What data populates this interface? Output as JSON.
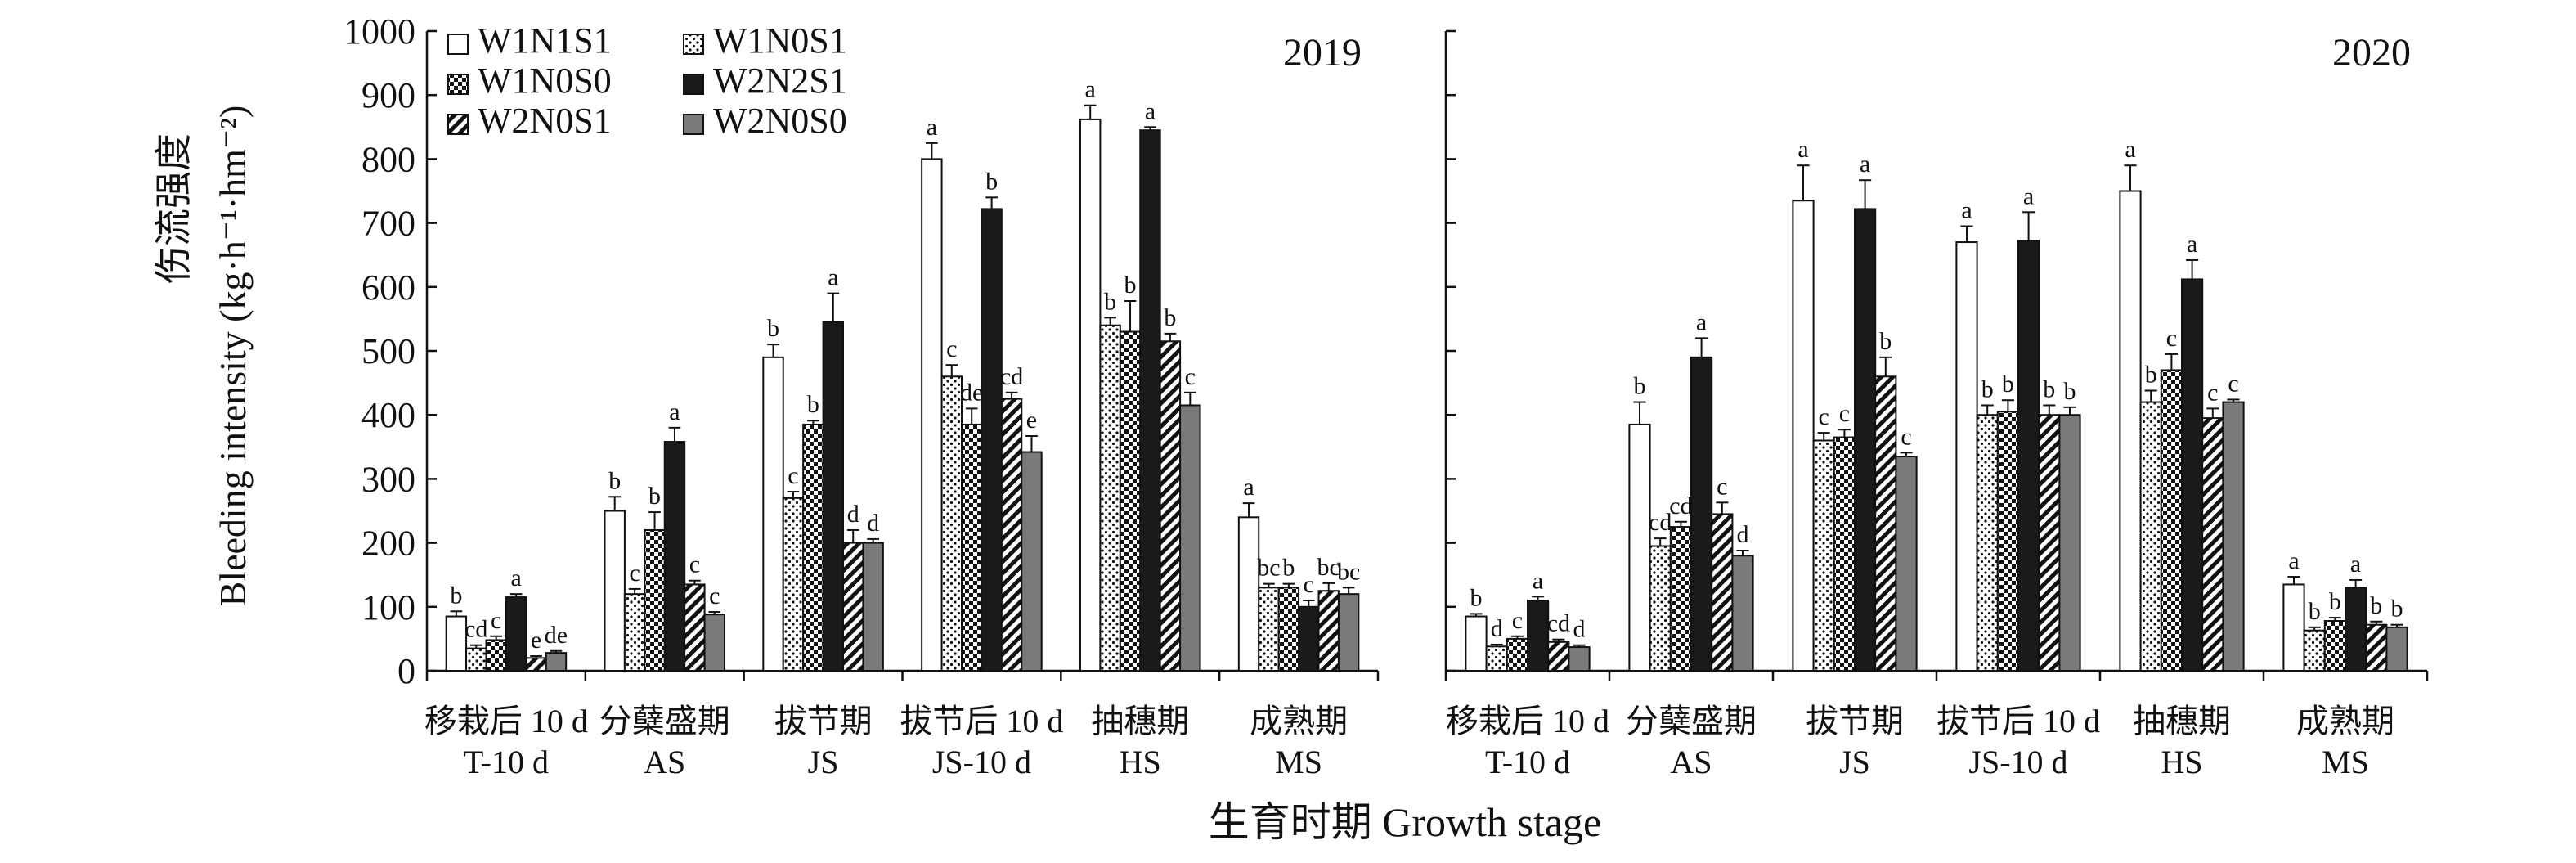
{
  "chart_data": {
    "type": "bar",
    "ylabel_cn": "伤流强度",
    "ylabel_en": "Bleeding intensity (kg·h⁻¹·hm⁻²)",
    "xlabel": "生育时期 Growth stage",
    "ylim": [
      0,
      1000
    ],
    "yticks": [
      "0",
      "100",
      "200",
      "300",
      "400",
      "500",
      "600",
      "700",
      "800",
      "900",
      "1000"
    ],
    "categories": [
      {
        "cn": "移栽后 10 d",
        "en": "T-10 d"
      },
      {
        "cn": "分蘖盛期",
        "en": "AS"
      },
      {
        "cn": "拔节期",
        "en": "JS"
      },
      {
        "cn": "拔节后 10 d",
        "en": "JS-10 d"
      },
      {
        "cn": "抽穗期",
        "en": "HS"
      },
      {
        "cn": "成熟期",
        "en": "MS"
      }
    ],
    "legend": [
      {
        "name": "W1N1S1",
        "pattern": "white"
      },
      {
        "name": "W1N0S1",
        "pattern": "dots"
      },
      {
        "name": "W1N0S0",
        "pattern": "checker"
      },
      {
        "name": "W2N2S1",
        "pattern": "black"
      },
      {
        "name": "W2N0S1",
        "pattern": "diag"
      },
      {
        "name": "W2N0S0",
        "pattern": "gray"
      }
    ],
    "panels": [
      {
        "year": "2019",
        "series": [
          {
            "name": "W1N1S1",
            "values": [
              85,
              250,
              490,
              800,
              862,
              240
            ],
            "errors": [
              8,
              22,
              20,
              25,
              22,
              22
            ],
            "labels": [
              "b",
              "b",
              "b",
              "a",
              "a",
              "a"
            ]
          },
          {
            "name": "W1N0S1",
            "values": [
              35,
              120,
              270,
              460,
              540,
              130
            ],
            "errors": [
              5,
              8,
              10,
              18,
              12,
              6
            ],
            "labels": [
              "cd",
              "c",
              "c",
              "c",
              "b",
              "bc"
            ]
          },
          {
            "name": "W1N0S0",
            "values": [
              48,
              220,
              385,
              385,
              530,
              130
            ],
            "errors": [
              6,
              28,
              6,
              25,
              48,
              6
            ],
            "labels": [
              "c",
              "b",
              "b",
              "de",
              "b",
              "b"
            ]
          },
          {
            "name": "W2N2S1",
            "values": [
              115,
              358,
              545,
              722,
              845,
              100
            ],
            "errors": [
              5,
              22,
              45,
              18,
              5,
              10
            ],
            "labels": [
              "a",
              "a",
              "a",
              "b",
              "a",
              "c"
            ]
          },
          {
            "name": "W2N0S1",
            "values": [
              20,
              135,
              200,
              425,
              515,
              125
            ],
            "errors": [
              3,
              6,
              20,
              10,
              12,
              12
            ],
            "labels": [
              "e",
              "c",
              "d",
              "cd",
              "b",
              "bc"
            ]
          },
          {
            "name": "W2N0S0",
            "values": [
              28,
              88,
              200,
              342,
              415,
              120
            ],
            "errors": [
              3,
              4,
              6,
              25,
              20,
              10
            ],
            "labels": [
              "de",
              "c",
              "d",
              "e",
              "c",
              "bc"
            ]
          }
        ]
      },
      {
        "year": "2020",
        "series": [
          {
            "name": "W1N1S1",
            "values": [
              85,
              385,
              735,
              670,
              750,
              135
            ],
            "errors": [
              4,
              35,
              55,
              25,
              40,
              12
            ],
            "labels": [
              "b",
              "b",
              "a",
              "a",
              "a",
              "a"
            ]
          },
          {
            "name": "W1N0S1",
            "values": [
              38,
              195,
              360,
              400,
              420,
              63
            ],
            "errors": [
              3,
              12,
              12,
              15,
              18,
              5
            ],
            "labels": [
              "d",
              "cd",
              "c",
              "b",
              "b",
              "b"
            ]
          },
          {
            "name": "W1N0S0",
            "values": [
              50,
              225,
              365,
              405,
              470,
              78
            ],
            "errors": [
              4,
              8,
              12,
              18,
              25,
              5
            ],
            "labels": [
              "c",
              "cd",
              "c",
              "b",
              "c",
              "b"
            ]
          },
          {
            "name": "W2N2S1",
            "values": [
              110,
              490,
              722,
              672,
              612,
              130
            ],
            "errors": [
              6,
              30,
              45,
              45,
              30,
              12
            ],
            "labels": [
              "a",
              "a",
              "a",
              "a",
              "a",
              "a"
            ]
          },
          {
            "name": "W2N0S1",
            "values": [
              45,
              245,
              460,
              400,
              395,
              72
            ],
            "errors": [
              4,
              18,
              30,
              15,
              15,
              5
            ],
            "labels": [
              "cd",
              "c",
              "b",
              "b",
              "c",
              "b"
            ]
          },
          {
            "name": "W2N0S0",
            "values": [
              37,
              180,
              335,
              400,
              420,
              68
            ],
            "errors": [
              3,
              8,
              6,
              12,
              4,
              4
            ],
            "labels": [
              "d",
              "d",
              "c",
              "b",
              "c",
              "b"
            ]
          }
        ]
      }
    ]
  }
}
